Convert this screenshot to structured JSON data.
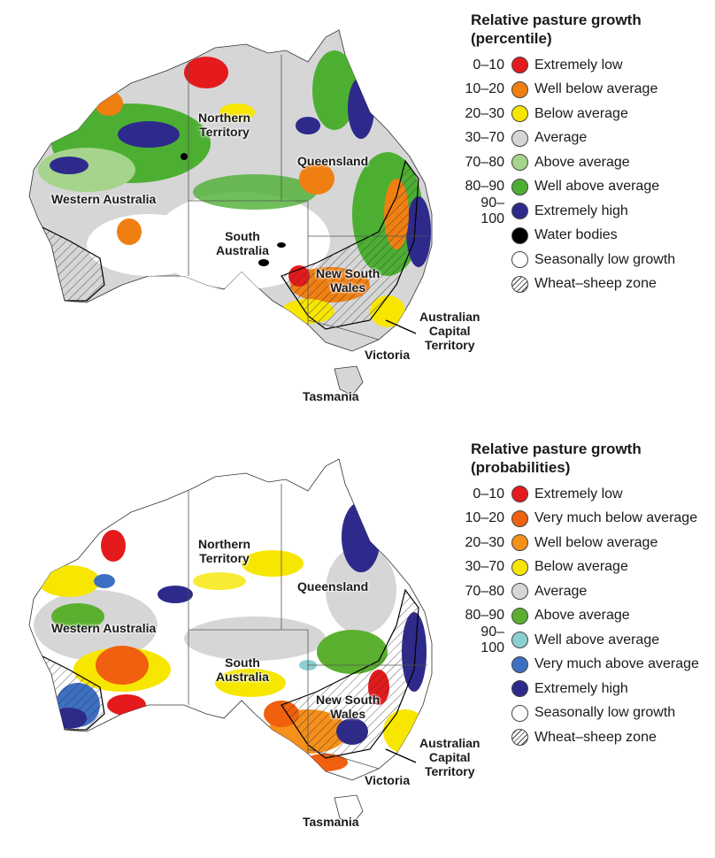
{
  "panels": [
    {
      "legend_title_1": "Relative pasture growth",
      "legend_title_2": "(percentile)",
      "legend": [
        {
          "range": "0–10",
          "label": "Extremely low",
          "color": "#e41a1c"
        },
        {
          "range": "10–20",
          "label": "Well below average",
          "color": "#f07f12"
        },
        {
          "range": "20–30",
          "label": "Below average",
          "color": "#f7e600"
        },
        {
          "range": "30–70",
          "label": "Average",
          "color": "#d6d6d6"
        },
        {
          "range": "70–80",
          "label": "Above average",
          "color": "#a6d48c"
        },
        {
          "range": "80–90",
          "label": "Well above average",
          "color": "#4caf32"
        },
        {
          "range": "90–100",
          "label": "Extremely high",
          "color": "#2e2a8c"
        },
        {
          "range": "",
          "label": "Water bodies",
          "color": "#000000"
        },
        {
          "range": "",
          "label": "Seasonally low growth",
          "color": "#ffffff"
        },
        {
          "range": "",
          "label": "Wheat–sheep zone",
          "color": "hatch"
        }
      ],
      "regions": {
        "wa": "Western Australia",
        "nt_1": "Northern",
        "nt_2": "Territory",
        "qld": "Queensland",
        "sa_1": "South",
        "sa_2": "Australia",
        "nsw_1": "New South",
        "nsw_2": "Wales",
        "act_1": "Australian",
        "act_2": "Capital",
        "act_3": "Territory",
        "vic": "Victoria",
        "tas": "Tasmania"
      }
    },
    {
      "legend_title_1": "Relative pasture growth",
      "legend_title_2": "(probabilities)",
      "legend": [
        {
          "range": "0–10",
          "label": "Extremely low",
          "color": "#e41a1c"
        },
        {
          "range": "10–20",
          "label": "Very much below average",
          "color": "#f0600e"
        },
        {
          "range": "20–30",
          "label": "Well below average",
          "color": "#f5901a"
        },
        {
          "range": "30–70",
          "label": "Below average",
          "color": "#f7e600"
        },
        {
          "range": "70–80",
          "label": "Average",
          "color": "#d6d6d6"
        },
        {
          "range": "80–90",
          "label": "Above average",
          "color": "#5cb030"
        },
        {
          "range": "90–100",
          "label": "Well above average",
          "color": "#8ccfd0"
        },
        {
          "range": "",
          "label": "Very much above average",
          "color": "#3d6fc2"
        },
        {
          "range": "",
          "label": "Extremely high",
          "color": "#2e2a8c"
        },
        {
          "range": "",
          "label": "Seasonally low growth",
          "color": "#ffffff"
        },
        {
          "range": "",
          "label": "Wheat–sheep zone",
          "color": "hatch"
        }
      ],
      "regions": {
        "wa": "Western Australia",
        "nt_1": "Northern",
        "nt_2": "Territory",
        "qld": "Queensland",
        "sa_1": "South",
        "sa_2": "Australia",
        "nsw_1": "New South",
        "nsw_2": "Wales",
        "act_1": "Australian",
        "act_2": "Capital",
        "act_3": "Territory",
        "vic": "Victoria",
        "tas": "Tasmania"
      }
    }
  ]
}
